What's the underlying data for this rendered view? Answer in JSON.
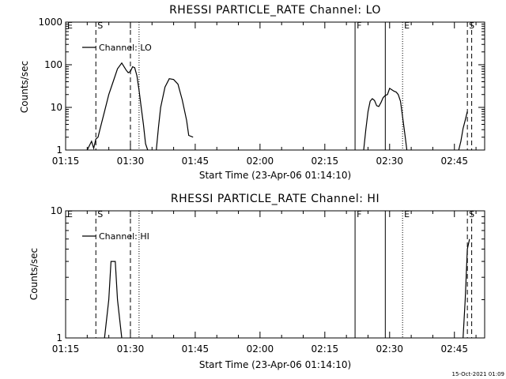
{
  "chart_data": [
    {
      "type": "line",
      "title": "RHESSI PARTICLE_RATE Channel: LO",
      "xlabel": "Start Time (23-Apr-06 01:14:10)",
      "ylabel": "Counts/sec",
      "yscale": "log",
      "ylim": [
        1,
        1000
      ],
      "xlim": [
        "01:15",
        "02:52"
      ],
      "xticks": [
        "01:15",
        "01:30",
        "01:45",
        "02:00",
        "02:15",
        "02:30",
        "02:45"
      ],
      "yticks": [
        "1",
        "10",
        "100",
        "1000"
      ],
      "legend": {
        "label": "Channel: LO",
        "placement": "top-left"
      },
      "grid": false,
      "series": [
        {
          "name": "Channel: LO",
          "segments": [
            [
              [
                "01:20:00",
                1
              ],
              [
                "01:21:00",
                1.6
              ],
              [
                "01:21:30",
                1.1
              ],
              [
                "01:22:00",
                1.8
              ],
              [
                "01:22:30",
                2
              ],
              [
                "01:23:00",
                3.2
              ],
              [
                "01:24:00",
                8
              ],
              [
                "01:25:00",
                20
              ],
              [
                "01:26:00",
                40
              ],
              [
                "01:27:00",
                80
              ],
              [
                "01:28:00",
                110
              ],
              [
                "01:29:00",
                75
              ],
              [
                "01:29:30",
                65
              ],
              [
                "01:30:00",
                70
              ],
              [
                "01:30:30",
                90
              ],
              [
                "01:31:00",
                85
              ],
              [
                "01:31:30",
                55
              ],
              [
                "01:32:00",
                25
              ],
              [
                "01:32:30",
                10
              ],
              [
                "01:33:00",
                4
              ],
              [
                "01:33:30",
                1.4
              ],
              [
                "01:34:00",
                1
              ]
            ],
            [
              [
                "01:36:00",
                1
              ],
              [
                "01:36:30",
                3.5
              ],
              [
                "01:37:00",
                10
              ],
              [
                "01:38:00",
                30
              ],
              [
                "01:39:00",
                47
              ],
              [
                "01:40:00",
                45
              ],
              [
                "01:41:00",
                35
              ],
              [
                "01:42:00",
                15
              ],
              [
                "01:43:00",
                5
              ],
              [
                "01:43:30",
                2.2
              ],
              [
                "01:44:30",
                2
              ]
            ],
            [
              [
                "02:24:00",
                1
              ],
              [
                "02:24:30",
                3
              ],
              [
                "02:25:00",
                8
              ],
              [
                "02:25:30",
                14
              ],
              [
                "02:26:00",
                16
              ],
              [
                "02:26:30",
                14.5
              ],
              [
                "02:27:00",
                11
              ],
              [
                "02:27:30",
                10.5
              ],
              [
                "02:28:00",
                13
              ],
              [
                "02:28:30",
                17
              ],
              [
                "02:29:00",
                19
              ],
              [
                "02:29:30",
                20
              ],
              [
                "02:30:00",
                28
              ],
              [
                "02:30:30",
                26
              ],
              [
                "02:31:00",
                24
              ],
              [
                "02:31:30",
                23
              ],
              [
                "02:32:00",
                20
              ],
              [
                "02:32:30",
                14
              ],
              [
                "02:33:00",
                6
              ],
              [
                "02:33:30",
                2.5
              ],
              [
                "02:34:00",
                1
              ]
            ],
            [
              [
                "02:46:00",
                1
              ],
              [
                "02:46:30",
                1.6
              ],
              [
                "02:47:00",
                3.2
              ],
              [
                "02:47:30",
                5
              ],
              [
                "02:48:00",
                8
              ]
            ]
          ]
        }
      ],
      "annotations": [
        {
          "label": "E",
          "time": "01:15:00",
          "line": "none"
        },
        {
          "label": "S",
          "time": "01:22:00",
          "line": "dashed"
        },
        {
          "label": "",
          "time": "01:30:00",
          "line": "dashed"
        },
        {
          "label": "",
          "time": "01:32:00",
          "line": "dotted"
        },
        {
          "label": "F",
          "time": "02:22:00",
          "line": "solid"
        },
        {
          "label": "",
          "time": "02:29:00",
          "line": "solid"
        },
        {
          "label": "E",
          "time": "02:33:00",
          "line": "dotted"
        },
        {
          "label": "S",
          "time": "02:48:00",
          "line": "dashed"
        },
        {
          "label": "",
          "time": "02:49:00",
          "line": "dashed"
        }
      ]
    },
    {
      "type": "line",
      "title": "RHESSI PARTICLE_RATE Channel: HI",
      "xlabel": "Start Time (23-Apr-06 01:14:10)",
      "ylabel": "Counts/sec",
      "yscale": "log",
      "ylim": [
        1,
        10
      ],
      "xlim": [
        "01:15",
        "02:52"
      ],
      "xticks": [
        "01:15",
        "01:30",
        "01:45",
        "02:00",
        "02:15",
        "02:30",
        "02:45"
      ],
      "yticks": [
        "1",
        "10"
      ],
      "legend": {
        "label": "Channel: HI",
        "placement": "top-left"
      },
      "grid": false,
      "series": [
        {
          "name": "Channel: HI",
          "segments": [
            [
              [
                "01:24:00",
                1
              ],
              [
                "01:25:00",
                2
              ],
              [
                "01:25:30",
                4
              ],
              [
                "01:26:30",
                4
              ],
              [
                "01:27:00",
                2
              ],
              [
                "01:28:00",
                1
              ]
            ],
            [
              [
                "02:47:00",
                1
              ],
              [
                "02:47:30",
                2
              ],
              [
                "02:48:00",
                5
              ],
              [
                "02:48:30",
                6
              ]
            ]
          ]
        }
      ],
      "annotations": [
        {
          "label": "E",
          "time": "01:15:00",
          "line": "none"
        },
        {
          "label": "S",
          "time": "01:22:00",
          "line": "dashed"
        },
        {
          "label": "",
          "time": "01:30:00",
          "line": "dashed"
        },
        {
          "label": "",
          "time": "01:32:00",
          "line": "dotted"
        },
        {
          "label": "F",
          "time": "02:22:00",
          "line": "solid"
        },
        {
          "label": "",
          "time": "02:29:00",
          "line": "solid"
        },
        {
          "label": "E",
          "time": "02:33:00",
          "line": "dotted"
        },
        {
          "label": "S",
          "time": "02:48:00",
          "line": "dashed"
        },
        {
          "label": "",
          "time": "02:49:00",
          "line": "dashed"
        }
      ]
    }
  ],
  "footer": {
    "stamp": "15-Oct-2021 01:09"
  },
  "colors": {
    "background": "#ffffff",
    "ink": "#000000"
  }
}
